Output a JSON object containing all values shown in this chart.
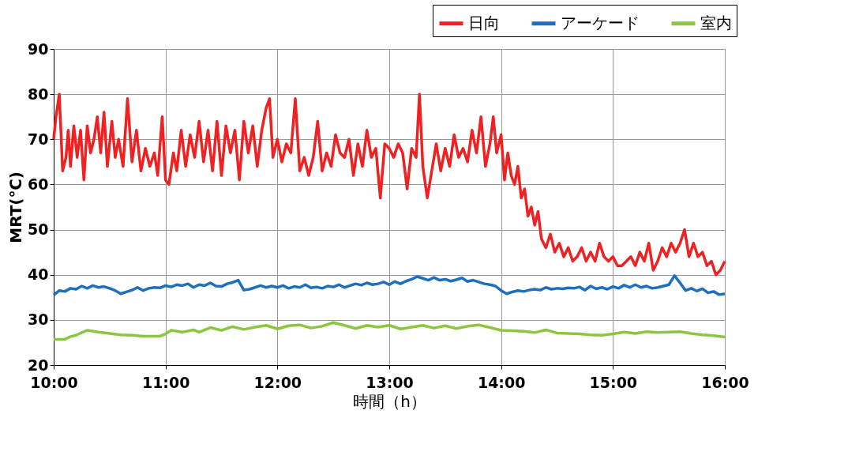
{
  "chart_data": {
    "type": "line",
    "xlabel": "時間（h）",
    "ylabel": "MRT(℃)",
    "xlim": [
      10,
      16
    ],
    "ylim": [
      20,
      90
    ],
    "xticks": [
      {
        "value": 10,
        "label": "10:00"
      },
      {
        "value": 11,
        "label": "11:00"
      },
      {
        "value": 12,
        "label": "12:00"
      },
      {
        "value": 13,
        "label": "13:00"
      },
      {
        "value": 14,
        "label": "14:00"
      },
      {
        "value": 15,
        "label": "15:00"
      },
      {
        "value": 16,
        "label": "16:00"
      }
    ],
    "yticks": [
      20,
      30,
      40,
      50,
      60,
      70,
      80,
      90
    ],
    "grid": true,
    "legend": "top right",
    "marker": "none",
    "line_style": "solid",
    "series": [
      {
        "name": "日向",
        "color": "#ee2222",
        "x": [
          10.0,
          10.02,
          10.05,
          10.08,
          10.11,
          10.13,
          10.15,
          10.18,
          10.21,
          10.24,
          10.27,
          10.3,
          10.33,
          10.36,
          10.39,
          10.42,
          10.45,
          10.48,
          10.52,
          10.55,
          10.58,
          10.62,
          10.66,
          10.7,
          10.74,
          10.78,
          10.82,
          10.86,
          10.9,
          10.93,
          10.97,
          11.0,
          11.03,
          11.07,
          11.1,
          11.14,
          11.18,
          11.22,
          11.26,
          11.3,
          11.34,
          11.38,
          11.42,
          11.46,
          11.5,
          11.54,
          11.58,
          11.62,
          11.66,
          11.7,
          11.74,
          11.78,
          11.82,
          11.86,
          11.9,
          11.93,
          11.96,
          12.0,
          12.04,
          12.08,
          12.12,
          12.16,
          12.2,
          12.24,
          12.28,
          12.32,
          12.36,
          12.4,
          12.44,
          12.48,
          12.52,
          12.56,
          12.6,
          12.64,
          12.68,
          12.72,
          12.76,
          12.8,
          12.84,
          12.88,
          12.92,
          12.96,
          13.0,
          13.04,
          13.08,
          13.12,
          13.16,
          13.2,
          13.24,
          13.27,
          13.3,
          13.34,
          13.38,
          13.42,
          13.46,
          13.5,
          13.54,
          13.58,
          13.62,
          13.66,
          13.7,
          13.74,
          13.78,
          13.82,
          13.86,
          13.9,
          13.93,
          13.96,
          14.0,
          14.03,
          14.06,
          14.09,
          14.12,
          14.15,
          14.18,
          14.21,
          14.24,
          14.27,
          14.3,
          14.33,
          14.36,
          14.4,
          14.44,
          14.48,
          14.52,
          14.56,
          14.6,
          14.64,
          14.68,
          14.72,
          14.76,
          14.8,
          14.84,
          14.88,
          14.92,
          14.96,
          15.0,
          15.04,
          15.08,
          15.12,
          15.16,
          15.2,
          15.24,
          15.28,
          15.32,
          15.36,
          15.4,
          15.44,
          15.48,
          15.52,
          15.56,
          15.6,
          15.64,
          15.68,
          15.72,
          15.76,
          15.8,
          15.84,
          15.88,
          15.92,
          15.96,
          16.0
        ],
        "values": [
          70,
          75,
          80,
          63,
          66,
          72,
          64,
          73,
          66,
          72,
          61,
          73,
          67,
          70,
          75,
          67,
          76,
          64,
          74,
          66,
          70,
          64,
          79,
          65,
          72,
          63,
          68,
          64,
          67,
          62,
          75,
          61,
          60,
          67,
          63,
          72,
          64,
          71,
          66,
          74,
          65,
          72,
          63,
          74,
          62,
          73,
          67,
          72,
          61,
          74,
          67,
          73,
          64,
          72,
          77,
          79,
          66,
          70,
          65,
          69,
          67,
          79,
          63,
          66,
          62,
          66,
          74,
          63,
          67,
          64,
          71,
          67,
          66,
          70,
          62,
          69,
          64,
          72,
          66,
          68,
          57,
          69,
          68,
          66,
          69,
          67,
          59,
          68,
          66,
          80,
          64,
          57,
          63,
          69,
          63,
          68,
          64,
          71,
          66,
          68,
          65,
          72,
          67,
          75,
          64,
          69,
          75,
          67,
          71,
          61,
          67,
          62,
          60,
          64,
          57,
          59,
          53,
          55,
          51,
          54,
          48,
          46,
          49,
          45,
          47,
          44,
          46,
          43,
          44,
          46,
          43,
          45,
          43,
          47,
          44,
          43,
          44,
          42,
          42,
          43,
          44,
          42,
          45,
          43,
          47,
          41,
          43,
          46,
          44,
          47,
          45,
          47,
          50,
          44,
          47,
          44,
          45,
          42,
          43,
          40,
          41,
          43
        ]
      },
      {
        "name": "アーケード",
        "color": "#1f6fbf",
        "x": [
          10.0,
          10.05,
          10.1,
          10.15,
          10.2,
          10.25,
          10.3,
          10.35,
          10.4,
          10.45,
          10.5,
          10.55,
          10.6,
          10.65,
          10.7,
          10.75,
          10.8,
          10.85,
          10.9,
          10.95,
          11.0,
          11.05,
          11.1,
          11.15,
          11.2,
          11.25,
          11.3,
          11.35,
          11.4,
          11.45,
          11.5,
          11.55,
          11.6,
          11.65,
          11.7,
          11.75,
          11.8,
          11.85,
          11.9,
          11.95,
          12.0,
          12.05,
          12.1,
          12.15,
          12.2,
          12.25,
          12.3,
          12.35,
          12.4,
          12.45,
          12.5,
          12.55,
          12.6,
          12.65,
          12.7,
          12.75,
          12.8,
          12.85,
          12.9,
          12.95,
          13.0,
          13.05,
          13.1,
          13.15,
          13.2,
          13.25,
          13.3,
          13.35,
          13.4,
          13.45,
          13.5,
          13.55,
          13.6,
          13.65,
          13.7,
          13.75,
          13.8,
          13.85,
          13.9,
          13.95,
          14.0,
          14.05,
          14.1,
          14.15,
          14.2,
          14.25,
          14.3,
          14.35,
          14.4,
          14.45,
          14.5,
          14.55,
          14.6,
          14.65,
          14.7,
          14.75,
          14.8,
          14.85,
          14.9,
          14.95,
          15.0,
          15.05,
          15.1,
          15.15,
          15.2,
          15.25,
          15.3,
          15.35,
          15.4,
          15.45,
          15.5,
          15.55,
          15.6,
          15.65,
          15.7,
          15.75,
          15.8,
          15.85,
          15.9,
          15.95,
          16.0
        ],
        "values": [
          35.5,
          36.5,
          36.3,
          37,
          36.8,
          37.5,
          37,
          37.6,
          37.2,
          37.4,
          37,
          36.5,
          35.8,
          36.2,
          36.6,
          37.2,
          36.5,
          37,
          37.2,
          37.1,
          37.6,
          37.3,
          37.8,
          37.6,
          38,
          37.2,
          37.8,
          37.6,
          38.2,
          37.5,
          37.4,
          38,
          38.3,
          38.8,
          36.6,
          36.8,
          37.2,
          37.6,
          37.2,
          37.5,
          37.2,
          37.6,
          37,
          37.4,
          37.2,
          37.8,
          37.1,
          37.3,
          37,
          37.5,
          37.3,
          37.8,
          37.2,
          37.6,
          38,
          37.7,
          38.2,
          37.8,
          38,
          38.4,
          37.8,
          38.5,
          38,
          38.6,
          39,
          39.6,
          39.2,
          38.8,
          39.4,
          38.8,
          39,
          38.6,
          38.9,
          39.3,
          38.5,
          38.8,
          38.4,
          38,
          37.8,
          37.5,
          36.5,
          35.8,
          36.2,
          36.5,
          36.3,
          36.6,
          36.8,
          36.6,
          37.2,
          36.8,
          37,
          36.9,
          37.1,
          37,
          37.3,
          36.6,
          37.5,
          36.9,
          37.2,
          36.8,
          37.4,
          37,
          37.7,
          37.2,
          37.8,
          37.2,
          37.5,
          37,
          37.2,
          37.5,
          37.8,
          39.8,
          38.2,
          36.5,
          37,
          36.4,
          36.9,
          36,
          36.3,
          35.6,
          35.8
        ]
      },
      {
        "name": "室内",
        "color": "#8cc63f",
        "x": [
          10.0,
          10.1,
          10.15,
          10.2,
          10.25,
          10.3,
          10.4,
          10.5,
          10.6,
          10.7,
          10.8,
          10.95,
          11.0,
          11.05,
          11.15,
          11.25,
          11.3,
          11.4,
          11.5,
          11.6,
          11.7,
          11.8,
          11.9,
          12.0,
          12.1,
          12.2,
          12.3,
          12.4,
          12.5,
          12.6,
          12.7,
          12.8,
          12.9,
          13.0,
          13.1,
          13.2,
          13.3,
          13.4,
          13.5,
          13.6,
          13.7,
          13.8,
          13.9,
          14.0,
          14.1,
          14.2,
          14.3,
          14.4,
          14.5,
          14.6,
          14.7,
          14.8,
          14.9,
          15.0,
          15.1,
          15.2,
          15.3,
          15.4,
          15.5,
          15.6,
          15.7,
          15.8,
          15.9,
          16.0
        ],
        "values": [
          25.7,
          25.7,
          26.3,
          26.6,
          27.2,
          27.7,
          27.3,
          27,
          26.7,
          26.6,
          26.4,
          26.4,
          26.9,
          27.7,
          27.3,
          27.8,
          27.3,
          28.3,
          27.7,
          28.5,
          27.9,
          28.4,
          28.8,
          28,
          28.7,
          28.9,
          28.2,
          28.6,
          29.4,
          28.8,
          28.1,
          28.8,
          28.4,
          28.8,
          28,
          28.4,
          28.8,
          28.2,
          28.7,
          28.1,
          28.6,
          28.9,
          28.3,
          27.7,
          27.6,
          27.5,
          27.2,
          27.8,
          27.1,
          27,
          26.9,
          26.7,
          26.6,
          26.9,
          27.3,
          27,
          27.4,
          27.2,
          27.3,
          27.4,
          27,
          26.7,
          26.5,
          26.2
        ]
      }
    ]
  }
}
